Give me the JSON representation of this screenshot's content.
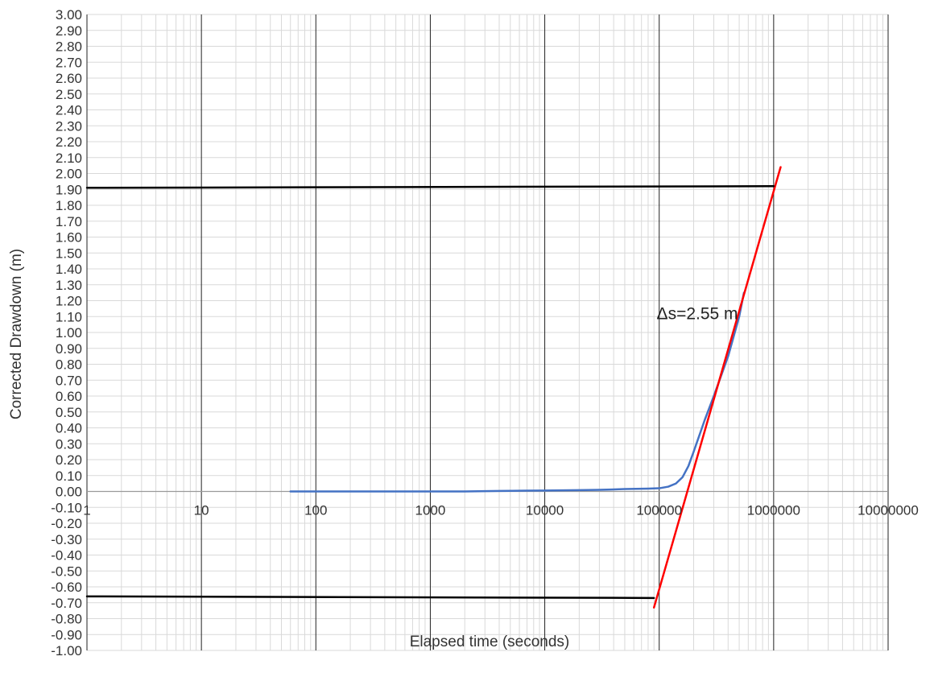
{
  "chart_data": {
    "type": "line",
    "xscale": "log",
    "xlim": [
      1,
      10000000
    ],
    "ylim": [
      -1.0,
      3.0
    ],
    "xlabel": "Elapsed time (seconds)",
    "ylabel": "Corrected Drawdown (m)",
    "title": "",
    "grid": true,
    "x_ticks": [
      "1",
      "10",
      "100",
      "1000",
      "10000",
      "100000",
      "1000000",
      "10000000"
    ],
    "y_ticks": [
      "3.00",
      "2.90",
      "2.80",
      "2.70",
      "2.60",
      "2.50",
      "2.40",
      "2.30",
      "2.20",
      "2.10",
      "2.00",
      "1.90",
      "1.80",
      "1.70",
      "1.60",
      "1.50",
      "1.40",
      "1.30",
      "1.20",
      "1.10",
      "1.00",
      "0.90",
      "0.80",
      "0.70",
      "0.60",
      "0.50",
      "0.40",
      "0.30",
      "0.20",
      "0.10",
      "0.00",
      "-0.10",
      "-0.20",
      "-0.30",
      "-0.40",
      "-0.50",
      "-0.60",
      "-0.70",
      "-0.80",
      "-0.90",
      "-1.00"
    ],
    "series": [
      {
        "kind": "data",
        "color": "#4472c4",
        "x": [
          60,
          100,
          200,
          500,
          1000,
          2000,
          3000,
          4000,
          5000,
          7000,
          10000,
          20000,
          30000,
          50000,
          80000,
          100000,
          120000,
          140000,
          160000,
          180000,
          200000,
          250000,
          300000,
          400000,
          500000,
          550000
        ],
        "y": [
          0.0,
          0.0,
          0.0,
          0.0,
          0.0,
          0.0,
          0.002,
          0.003,
          0.004,
          0.005,
          0.006,
          0.008,
          0.01,
          0.015,
          0.018,
          0.02,
          0.03,
          0.05,
          0.09,
          0.16,
          0.25,
          0.45,
          0.6,
          0.85,
          1.1,
          1.25
        ]
      },
      {
        "kind": "fit-line",
        "color": "#ff0000",
        "x": [
          90000,
          1150000
        ],
        "y": [
          -0.73,
          2.04
        ]
      },
      {
        "kind": "reference-line",
        "color": "#000000",
        "x": [
          1,
          1000000
        ],
        "y": [
          1.91,
          1.92
        ]
      },
      {
        "kind": "reference-line",
        "color": "#000000",
        "x": [
          1,
          90000
        ],
        "y": [
          -0.66,
          -0.67
        ]
      }
    ],
    "annotations": [
      {
        "text": "Δs=2.55 m",
        "x": 95000,
        "y": 1.12
      }
    ]
  }
}
